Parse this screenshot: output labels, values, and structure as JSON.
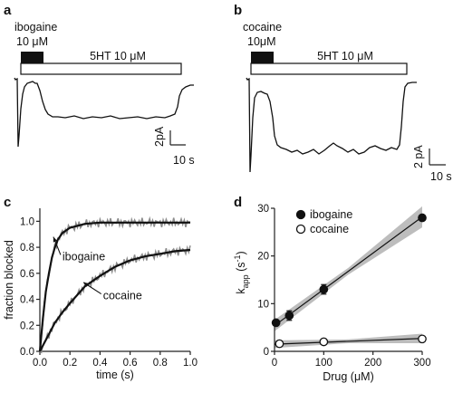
{
  "panels": {
    "a": {
      "label": "a",
      "drug_line1": "ibogaine",
      "drug_line2": "10 μM",
      "agonist": "5HT 10 μM",
      "scale_current": "2pA",
      "scale_time": "10 s"
    },
    "b": {
      "label": "b",
      "drug_line1": "cocaine",
      "drug_line2": "10μM",
      "agonist": "5HT 10 μM",
      "scale_current": "2 pA",
      "scale_time": "10 s"
    }
  },
  "chart_data": [
    {
      "panel": "c",
      "type": "line",
      "xlabel": "time (s)",
      "ylabel": "fraction blocked",
      "xlim": [
        0.0,
        1.0
      ],
      "ylim": [
        0.0,
        1.1
      ],
      "xticks": [
        "0.0",
        "0.2",
        "0.4",
        "0.6",
        "0.8",
        "1.0"
      ],
      "yticks": [
        "0.0",
        "0.2",
        "0.4",
        "0.6",
        "0.8",
        "1.0"
      ],
      "series": [
        {
          "annotation": "ibogaine",
          "x": [
            0.0,
            0.02,
            0.04,
            0.06,
            0.08,
            0.1,
            0.12,
            0.15,
            0.2,
            0.3,
            0.4,
            0.5,
            0.6,
            0.7,
            0.8,
            0.9,
            1.0
          ],
          "y": [
            0.0,
            0.25,
            0.46,
            0.6,
            0.72,
            0.8,
            0.86,
            0.91,
            0.95,
            0.98,
            0.99,
            0.99,
            0.99,
            0.99,
            0.99,
            0.99,
            0.99
          ]
        },
        {
          "annotation": "cocaine",
          "x": [
            0.0,
            0.05,
            0.1,
            0.15,
            0.2,
            0.3,
            0.4,
            0.5,
            0.6,
            0.7,
            0.8,
            0.9,
            1.0
          ],
          "y": [
            0.0,
            0.11,
            0.22,
            0.3,
            0.37,
            0.5,
            0.58,
            0.65,
            0.7,
            0.73,
            0.75,
            0.77,
            0.78
          ]
        }
      ]
    },
    {
      "panel": "d",
      "type": "scatter",
      "xlabel": "Drug (μM)",
      "ylabel_main": "k",
      "ylabel_sub": "app",
      "ylabel_unit": " (s",
      "ylabel_sup": "-1",
      "ylabel_close": ")",
      "xlim": [
        0,
        300
      ],
      "ylim": [
        0,
        30
      ],
      "xticks": [
        "0",
        "100",
        "200",
        "300"
      ],
      "yticks": [
        "0",
        "10",
        "20",
        "30"
      ],
      "series": [
        {
          "name": "ibogaine",
          "marker": "filled",
          "x": [
            3,
            30,
            100,
            300
          ],
          "y": [
            6.0,
            7.5,
            13.0,
            28.0
          ],
          "err": [
            0.3,
            1.0,
            1.0,
            0.3
          ],
          "fit": [
            [
              0,
              5.4
            ],
            [
              300,
              28.2
            ]
          ]
        },
        {
          "name": "cocaine",
          "marker": "open",
          "x": [
            10,
            100,
            300
          ],
          "y": [
            1.6,
            2.0,
            2.6
          ],
          "err": [
            0.2,
            0.2,
            0.2
          ],
          "fit": [
            [
              0,
              1.5
            ],
            [
              300,
              2.7
            ]
          ]
        }
      ]
    }
  ]
}
